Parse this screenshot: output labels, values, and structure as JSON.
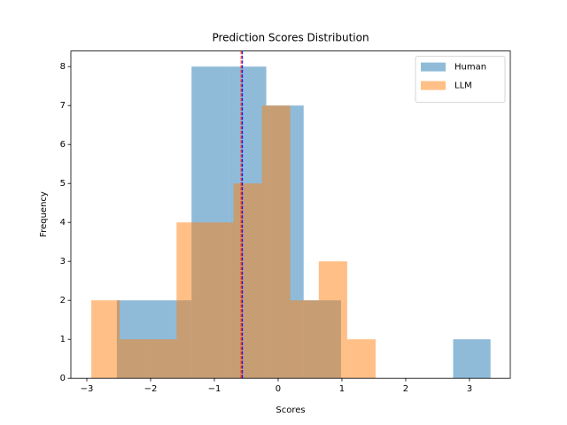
{
  "chart_data": {
    "type": "histogram",
    "title": "Prediction Scores Distribution",
    "x_label": "Scores",
    "y_label": "Frequency",
    "series": [
      {
        "name": "Human",
        "color": "#1f77b4",
        "opacity": 0.5,
        "bins": [
          -2.53,
          -1.944,
          -1.358,
          -0.772,
          -0.186,
          0.4,
          0.986,
          1.572,
          2.158,
          2.744,
          3.33
        ],
        "values": [
          2,
          2,
          8,
          8,
          7,
          2,
          0,
          0,
          0,
          1
        ]
      },
      {
        "name": "LLM",
        "color": "#ff7f0e",
        "opacity": 0.5,
        "bins": [
          -2.93,
          -2.484,
          -2.038,
          -1.593,
          -1.147,
          -0.701,
          -0.255,
          0.191,
          0.637,
          1.082,
          1.528
        ],
        "values": [
          2,
          1,
          1,
          4,
          4,
          5,
          7,
          2,
          3,
          1
        ]
      }
    ],
    "vlines": [
      {
        "x": -0.58,
        "color": "red"
      },
      {
        "x": -0.56,
        "color": "blue"
      }
    ],
    "xlim": [
      -3.25,
      3.64
    ],
    "xticks": [
      {
        "value": -3,
        "label": "−3"
      },
      {
        "value": -2,
        "label": "−2"
      },
      {
        "value": -1,
        "label": "−1"
      },
      0,
      1,
      2,
      3
    ],
    "ylim": [
      0,
      8.4
    ],
    "yticks": [
      0,
      1,
      2,
      3,
      4,
      5,
      6,
      7,
      8
    ],
    "legend": "upper right"
  }
}
